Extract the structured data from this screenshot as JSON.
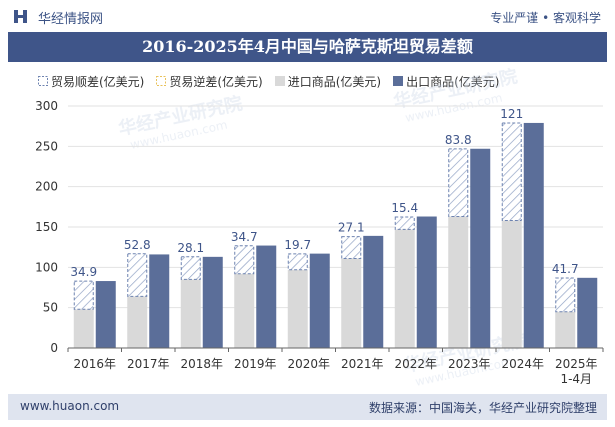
{
  "header": {
    "brand": "华经情报网",
    "tagline": "专业严谨 • 客观科学"
  },
  "title": "2016-2025年4月中国与哈萨克斯坦贸易差额",
  "footer": {
    "website": "www.huaon.com",
    "source": "数据来源：中国海关，华经产业研究院整理"
  },
  "watermark": {
    "text": "华经产业研究院",
    "url": "www.huaon.com"
  },
  "colors": {
    "import": "#d9d9d9",
    "export": "#5b6e99",
    "surplus_stroke": "#6e83b0",
    "title_bg": "#3f5589"
  },
  "chart_data": {
    "type": "bar",
    "title": "2016-2025年4月中国与哈萨克斯坦贸易差额",
    "categories": [
      "2016年",
      "2017年",
      "2018年",
      "2019年",
      "2020年",
      "2021年",
      "2022年",
      "2023年",
      "2024年",
      "2025年\n1-4月"
    ],
    "series": [
      {
        "name": "贸易顺差(亿美元)",
        "values": [
          34.9,
          52.8,
          28.1,
          34.7,
          19.7,
          27.1,
          15.4,
          83.8,
          121,
          41.7
        ]
      },
      {
        "name": "贸易逆差(亿美元)",
        "values": [
          0,
          0,
          0,
          0,
          0,
          0,
          0,
          0,
          0,
          0
        ]
      },
      {
        "name": "进口商品(亿美元)",
        "values": [
          48,
          64,
          85,
          92,
          97,
          111,
          147,
          163,
          158,
          45
        ]
      },
      {
        "name": "出口商品(亿美元)",
        "values": [
          83,
          116,
          113,
          127,
          117,
          139,
          163,
          247,
          279,
          87
        ]
      }
    ],
    "data_labels": [
      "34.9",
      "52.8",
      "28.1",
      "34.7",
      "19.7",
      "27.1",
      "15.4",
      "83.8",
      "121",
      "41.7"
    ],
    "ylim": [
      0,
      300
    ],
    "yticks": [
      0,
      50,
      100,
      150,
      200,
      250,
      300
    ],
    "grid": true,
    "legend": "top-left"
  }
}
